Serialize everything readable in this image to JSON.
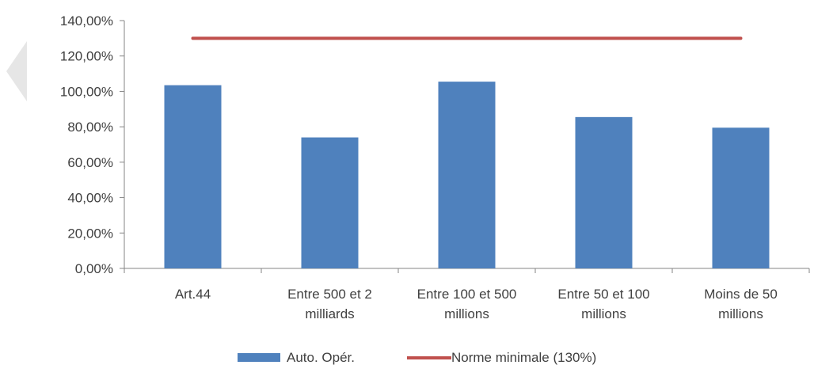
{
  "chart_data": {
    "type": "bar",
    "categories": [
      [
        "Art.44"
      ],
      [
        "Entre 500 et 2",
        "milliards"
      ],
      [
        "Entre 100 et 500",
        "millions"
      ],
      [
        "Entre 50 et 100",
        "millions"
      ],
      [
        "Moins de 50",
        "millions"
      ]
    ],
    "series": [
      {
        "name": "Auto. Opér.",
        "type": "bar",
        "color": "#4F81BD",
        "values": [
          103.5,
          74.0,
          105.5,
          85.5,
          79.5
        ]
      },
      {
        "name": "Norme minimale (130%)",
        "type": "line",
        "color": "#C0504D",
        "values": [
          130,
          130,
          130,
          130,
          130
        ]
      }
    ],
    "ylim": [
      0,
      140
    ],
    "yticks": [
      0,
      20,
      40,
      60,
      80,
      100,
      120,
      140
    ],
    "ytick_labels": [
      "0,00%",
      "20,00%",
      "40,00%",
      "60,00%",
      "80,00%",
      "100,00%",
      "120,00%",
      "140,00%"
    ],
    "grid": false,
    "legend_position": "bottom"
  },
  "side_tab": {
    "icon": "chevron-left-icon",
    "color": "#e6e6e6"
  }
}
